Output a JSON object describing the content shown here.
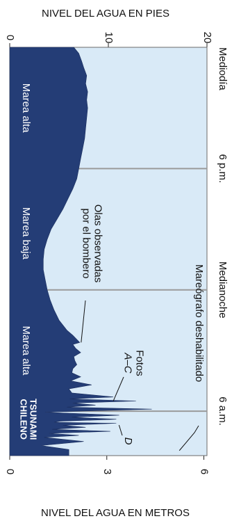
{
  "chart_data": {
    "type": "area",
    "orientation": "rotated (time runs top to bottom, water level increases to the right)",
    "title_top": "NIVEL DEL AGUA EN PIES",
    "title_bottom": "NIVEL DEL AGUA EN METROS",
    "feet_axis": {
      "ticks": [
        0,
        10,
        20
      ],
      "tick_labels": [
        "0",
        "10",
        "20"
      ],
      "range": [
        0,
        20
      ]
    },
    "meters_axis": {
      "ticks": [
        0,
        3,
        6
      ],
      "tick_labels": [
        "0",
        "3",
        "6"
      ]
    },
    "time_axis": {
      "ticks": [
        0,
        6,
        12,
        18
      ],
      "tick_labels": [
        "Mediodía",
        "6 p.m.",
        "Medianoche",
        "6 a.m."
      ],
      "range_hours_after_noon": [
        0,
        20.2
      ]
    },
    "grid": true,
    "colors": {
      "plot_bg": "#d9eaf7",
      "fill": "#243d76",
      "grid": "#9a9a9a",
      "text_on_fill": "#ffffff"
    },
    "regions": [
      {
        "label": "Marea alta",
        "hours": 3.0
      },
      {
        "label": "Marea baja",
        "hours": 9.2
      },
      {
        "label": "Marea alta",
        "hours": 15.0
      },
      {
        "label": "TSUNAMI\nCHILENO",
        "hours": 18.4
      }
    ],
    "annotations": [
      {
        "label": "Olas observadas\npor el bombero",
        "points_to_hours": 14.6,
        "points_to_feet": 7.1
      },
      {
        "label": "Fotos\nA–C",
        "points_to_hours": 17.5,
        "points_to_feet": 10.5
      },
      {
        "label": "D",
        "points_to_hours": 18.55,
        "points_to_feet": 10.8
      },
      {
        "label": "Mareógrafo deshabilitado",
        "points_to_hours": 19.4,
        "points_to_feet": 17.2
      }
    ],
    "series": [
      {
        "hours": [
          0.0,
          0.3,
          0.7,
          1.0,
          1.4,
          1.8,
          2.2,
          2.6,
          3.0,
          3.5,
          4.0,
          4.5,
          5.0,
          5.5,
          6.0,
          6.5,
          7.0,
          7.5,
          8.0,
          8.5,
          9.0,
          9.5,
          10.0,
          10.5,
          11.0,
          11.5,
          12.0,
          12.5,
          13.0,
          13.5,
          14.0,
          14.25,
          14.5,
          14.6,
          14.7,
          14.9,
          15.1,
          15.3,
          15.5,
          15.7,
          15.9,
          16.1,
          16.3,
          16.5,
          16.7,
          16.9,
          17.1,
          17.3,
          17.4,
          17.5,
          17.6,
          17.7,
          17.8,
          17.9,
          18.0,
          18.05,
          18.1,
          18.2,
          18.3,
          18.4,
          18.5,
          18.55,
          18.6,
          18.7,
          18.8,
          18.9,
          19.0,
          19.1,
          19.2,
          19.3,
          19.5,
          19.7,
          19.9,
          20.1,
          20.2
        ],
        "feet": [
          6.5,
          7.0,
          7.3,
          7.5,
          7.8,
          7.7,
          7.9,
          7.8,
          7.9,
          7.8,
          7.7,
          7.6,
          7.4,
          7.2,
          7.0,
          6.8,
          6.4,
          5.9,
          5.4,
          4.8,
          4.2,
          3.8,
          3.5,
          3.4,
          3.4,
          3.6,
          3.8,
          4.1,
          4.5,
          5.0,
          5.8,
          6.4,
          6.9,
          7.1,
          6.4,
          6.7,
          7.2,
          6.5,
          6.6,
          6.8,
          6.4,
          6.3,
          7.2,
          6.2,
          8.3,
          6.0,
          6.3,
          10.5,
          6.1,
          12.8,
          6.4,
          8.7,
          5.8,
          14.4,
          7.0,
          3.6,
          6.0,
          11.1,
          6.3,
          10.8,
          5.1,
          4.5,
          10.8,
          5.4,
          7.7,
          4.3,
          10.2,
          4.0,
          7.0,
          3.5,
          7.5,
          3.2,
          6.0,
          6.0,
          6.0
        ]
      }
    ]
  }
}
